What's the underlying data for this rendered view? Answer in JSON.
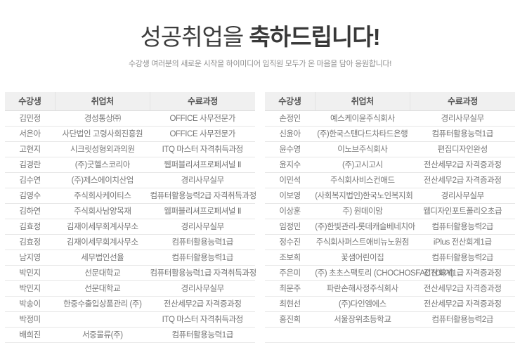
{
  "header": {
    "title_normal": "성공취업을 ",
    "title_bold": "축하드립니다!",
    "subtitle": "수강생 여러분의 새로운 시작을 하이미디어 임직원 모두가 온 마음을 담아 응원합니다!"
  },
  "columns": [
    "수강생",
    "취업처",
    "수료과정"
  ],
  "left_table": {
    "rows": [
      {
        "student": "김민정",
        "company": "경성통상㈜",
        "course": "OFFICE 사무전문가"
      },
      {
        "student": "서은아",
        "company": "사단법인 고령사회진흥원",
        "course": "OFFICE 사무전문가"
      },
      {
        "student": "고현지",
        "company": "시크릿성형외과의원",
        "course": "ITQ 마스터 자격취득과정"
      },
      {
        "student": "김경란",
        "company": "(주)굿헬스코리아",
        "course": "웹퍼블리셔프로페셔널 Ⅱ"
      },
      {
        "student": "김수연",
        "company": "(주)제스에이치산업",
        "course": "경리사무실무"
      },
      {
        "student": "김영수",
        "company": "주식회사케이티스",
        "course": "컴퓨터활용능력2급 자격취득과정"
      },
      {
        "student": "김하연",
        "company": "주식회사남양목재",
        "course": "웹퍼블리셔프로페셔널 Ⅱ"
      },
      {
        "student": "김효정",
        "company": "김재이세무회계사무소",
        "course": "경리사무실무"
      },
      {
        "student": "김효정",
        "company": "김재이세무회계사무소",
        "course": "컴퓨터활용능력1급"
      },
      {
        "student": "남지영",
        "company": "세무법인선율",
        "course": "컴퓨터활용능력1급"
      },
      {
        "student": "박민지",
        "company": "선문대학교",
        "course": "컴퓨터활용능력1급 자격취득과정"
      },
      {
        "student": "박민지",
        "company": "선문대학교",
        "course": "경리사무실무"
      },
      {
        "student": "박송이",
        "company": "한중수출입상품관리 (주)",
        "course": "전산세무2급 자격증과정"
      },
      {
        "student": "박정미",
        "company": "",
        "course": "ITQ 마스터 자격취득과정"
      },
      {
        "student": "배희진",
        "company": "서중물류(주)",
        "course": "컴퓨터활용능력1급"
      }
    ]
  },
  "right_table": {
    "rows": [
      {
        "student": "손정인",
        "company": "예스케이윤주식회사",
        "course": "경리사무실무"
      },
      {
        "student": "신윤아",
        "company": "(주)한국스탠다드차타드은행",
        "course": "컴퓨터활용능력1급"
      },
      {
        "student": "윤수영",
        "company": "이노브주식회사",
        "course": "편집디자인완성"
      },
      {
        "student": "윤지수",
        "company": "(주)고시고시",
        "course": "전산세무2급 자격증과정"
      },
      {
        "student": "이민석",
        "company": "주식회사비스컨애드",
        "course": "전산세무2급 자격증과정"
      },
      {
        "student": "이보영",
        "company": "(사회복지법인)한국노인복지회",
        "course": "경리사무실무"
      },
      {
        "student": "이상훈",
        "company": "주) 원데이맘",
        "course": "웹디자인포트폴리오초급"
      },
      {
        "student": "임정민",
        "company": "(주)한빛관리-롯데캐슬베네치아",
        "course": "컴퓨터활용능력2급"
      },
      {
        "student": "정수진",
        "company": "주식회사퍼스트애비뉴노원점",
        "course": "iPlus 전산회계1급"
      },
      {
        "student": "조보희",
        "company": "꽃샘어린이집",
        "course": "컴퓨터활용능력2급"
      },
      {
        "student": "주은미",
        "company": "(주) 초초스팩토리 (CHOCHOSFACTORY)",
        "course": "전산회계1급 자격증과정"
      },
      {
        "student": "최문주",
        "company": "파란손해사정주식회사",
        "course": "전산세무2급 자격증과정"
      },
      {
        "student": "최현선",
        "company": "(주)다인엠에스",
        "course": "전산세무2급 자격증과정"
      },
      {
        "student": "홍진희",
        "company": "서울장위초등학교",
        "course": "컴퓨터활용능력2급"
      },
      {
        "student": "",
        "company": "",
        "course": ""
      }
    ]
  },
  "colors": {
    "title_text": "#3d3d3d",
    "subtitle_text": "#8f8f8f",
    "header_row_bg": "#f0f0f0",
    "header_row_text": "#555555",
    "body_text": "#767676",
    "row_border": "#e7e7e7"
  }
}
